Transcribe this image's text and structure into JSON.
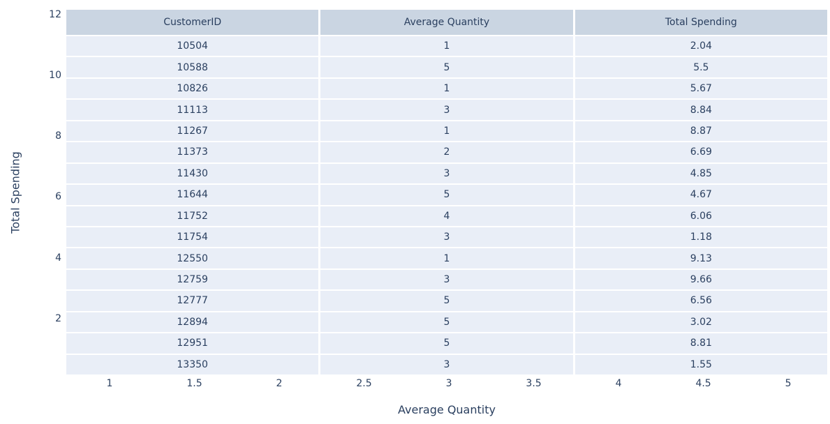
{
  "colors": {
    "page_bg": "#ffffff",
    "plot_bg": "#e5ecf6",
    "header_fill": "#cad5e2",
    "cell_fill": "#e9eef7",
    "line_color": "#ffffff",
    "text_color": "#2a3f5f"
  },
  "chart_data": {
    "type": "table",
    "title": "",
    "columns": [
      "CustomerID",
      "Average Quantity",
      "Total Spending"
    ],
    "rows": [
      [
        10504,
        1,
        2.04
      ],
      [
        10588,
        5,
        5.5
      ],
      [
        10826,
        1,
        5.67
      ],
      [
        11113,
        3,
        8.84
      ],
      [
        11267,
        1,
        8.87
      ],
      [
        11373,
        2,
        6.69
      ],
      [
        11430,
        3,
        4.85
      ],
      [
        11644,
        5,
        4.67
      ],
      [
        11752,
        4,
        6.06
      ],
      [
        11754,
        3,
        1.18
      ],
      [
        12550,
        1,
        9.13
      ],
      [
        12759,
        3,
        9.66
      ],
      [
        12777,
        5,
        6.56
      ],
      [
        12894,
        5,
        3.02
      ],
      [
        12951,
        5,
        8.81
      ],
      [
        13350,
        3,
        1.55
      ]
    ],
    "xlabel": "Average Quantity",
    "ylabel": "Total Spending",
    "xticks": [
      1,
      1.5,
      2,
      2.5,
      3,
      3.5,
      4,
      4.5,
      5
    ],
    "yticks": [
      12,
      10,
      8,
      6,
      4,
      2
    ],
    "xlim": [
      0.745,
      5.23
    ],
    "ylim": [
      0.17,
      12.15
    ],
    "grid": false,
    "legend": false
  }
}
